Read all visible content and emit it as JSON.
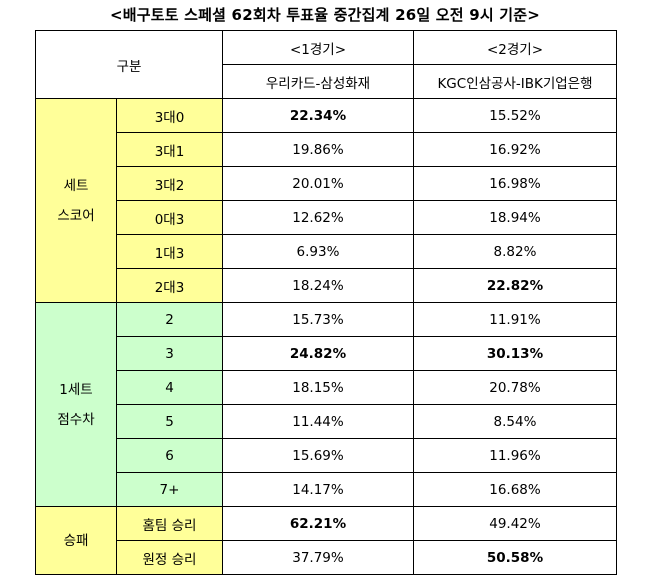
{
  "title": "<배구토토 스페셜 62회차 투표율 중간집계 26일 오전 9시 기준>",
  "header": {
    "category": "구분",
    "game1_label": "<1경기>",
    "game1_teams": "우리카드-삼성화재",
    "game2_label": "<2경기>",
    "game2_teams": "KGC인삼공사-IBK기업은행"
  },
  "groups": {
    "set_score": {
      "line1": "세트",
      "line2": "스코어"
    },
    "set1_margin": {
      "line1": "1세트",
      "line2": "점수차"
    },
    "win_loss": {
      "line1": "승패"
    }
  },
  "rows": [
    {
      "label": "3대0",
      "g1": "22.34%",
      "g2": "15.52%",
      "g1_bold": true,
      "g2_bold": false
    },
    {
      "label": "3대1",
      "g1": "19.86%",
      "g2": "16.92%",
      "g1_bold": false,
      "g2_bold": false
    },
    {
      "label": "3대2",
      "g1": "20.01%",
      "g2": "16.98%",
      "g1_bold": false,
      "g2_bold": false
    },
    {
      "label": "0대3",
      "g1": "12.62%",
      "g2": "18.94%",
      "g1_bold": false,
      "g2_bold": false
    },
    {
      "label": "1대3",
      "g1": "6.93%",
      "g2": "8.82%",
      "g1_bold": false,
      "g2_bold": false
    },
    {
      "label": "2대3",
      "g1": "18.24%",
      "g2": "22.82%",
      "g1_bold": false,
      "g2_bold": true
    },
    {
      "label": "2",
      "g1": "15.73%",
      "g2": "11.91%",
      "g1_bold": false,
      "g2_bold": false
    },
    {
      "label": "3",
      "g1": "24.82%",
      "g2": "30.13%",
      "g1_bold": true,
      "g2_bold": true
    },
    {
      "label": "4",
      "g1": "18.15%",
      "g2": "20.78%",
      "g1_bold": false,
      "g2_bold": false
    },
    {
      "label": "5",
      "g1": "11.44%",
      "g2": "8.54%",
      "g1_bold": false,
      "g2_bold": false
    },
    {
      "label": "6",
      "g1": "15.69%",
      "g2": "11.96%",
      "g1_bold": false,
      "g2_bold": false
    },
    {
      "label": "7+",
      "g1": "14.17%",
      "g2": "16.68%",
      "g1_bold": false,
      "g2_bold": false
    },
    {
      "label": "홈팀 승리",
      "g1": "62.21%",
      "g2": "49.42%",
      "g1_bold": true,
      "g2_bold": false
    },
    {
      "label": "원정 승리",
      "g1": "37.79%",
      "g2": "50.58%",
      "g1_bold": false,
      "g2_bold": true
    }
  ],
  "colors": {
    "set_score_bg": "#ffff99",
    "set1_margin_bg": "#ccffcc",
    "win_loss_bg": "#ffff99"
  }
}
